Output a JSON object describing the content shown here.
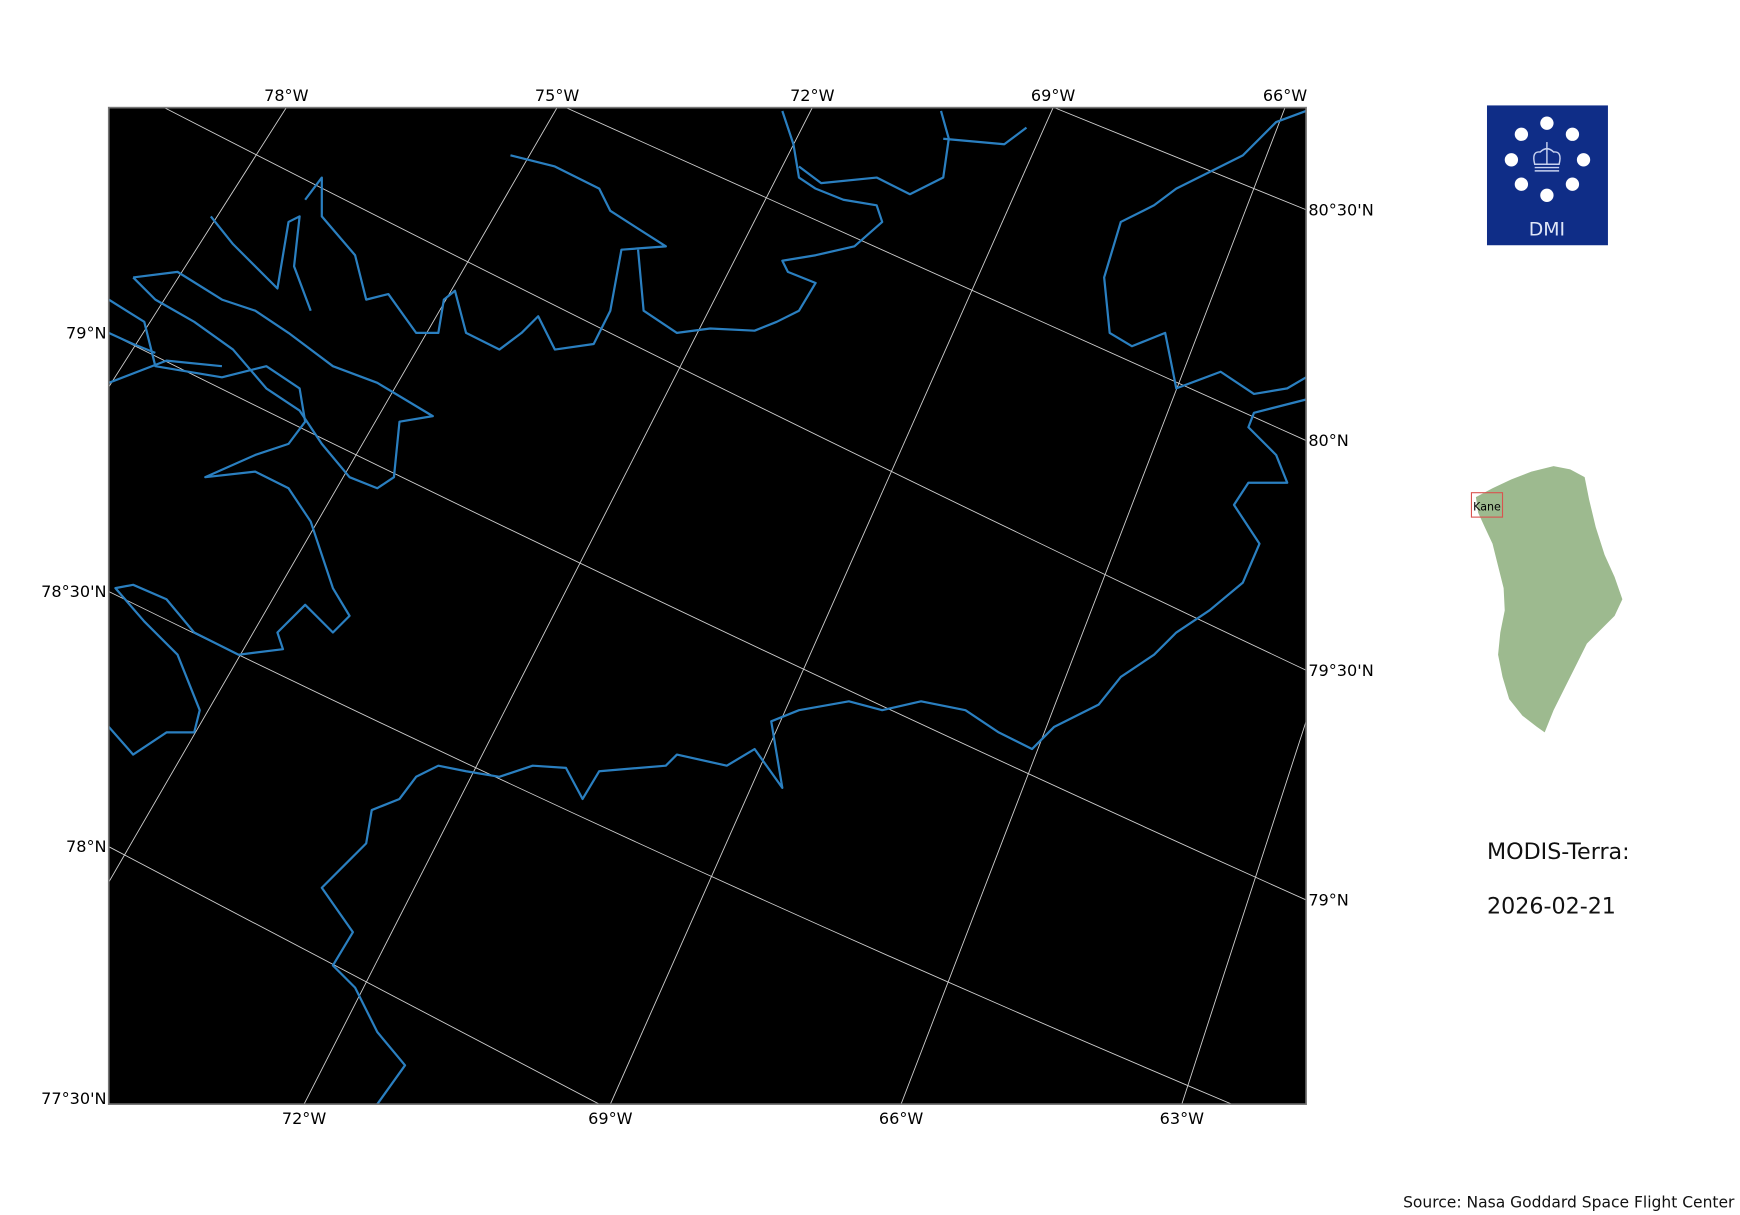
{
  "map": {
    "background_color": "#000000",
    "coastline_color": "#2a7fc0",
    "gridline_color": "#d0d0d0",
    "top_lon_labels": [
      "78°W",
      "75°W",
      "72°W",
      "69°W",
      "66°W"
    ],
    "bottom_lon_labels": [
      "72°W",
      "69°W",
      "66°W",
      "63°W"
    ],
    "left_lat_labels": [
      "79°N",
      "78°30'N",
      "78°N",
      "77°30'N"
    ],
    "right_lat_labels": [
      "80°30'N",
      "80°N",
      "79°30'N",
      "79°N"
    ]
  },
  "logo": {
    "text": "DMI",
    "background_color": "#0f2d87"
  },
  "inset": {
    "region_label": "Kane",
    "land_color": "#9dba8f",
    "box_color": "#d9534f"
  },
  "caption": {
    "sensor": "MODIS-Terra:",
    "date": "2026-02-21"
  },
  "source": "Source: Nasa Goddard Space Flight Center"
}
